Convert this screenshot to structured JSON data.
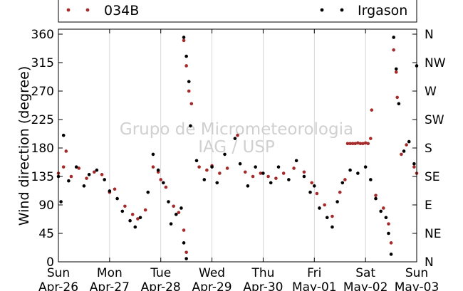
{
  "chart_data": {
    "type": "scatter",
    "ylabel": "Wind direction (degree)",
    "ylim": [
      0,
      360
    ],
    "yticks": [
      0,
      45,
      90,
      135,
      180,
      225,
      270,
      315,
      360
    ],
    "compass_ticks": [
      {
        "value": 0,
        "label": "N"
      },
      {
        "value": 45,
        "label": "NE"
      },
      {
        "value": 90,
        "label": "E"
      },
      {
        "value": 135,
        "label": "SE"
      },
      {
        "value": 180,
        "label": "S"
      },
      {
        "value": 225,
        "label": "SW"
      },
      {
        "value": 270,
        "label": "W"
      },
      {
        "value": 315,
        "label": "NW"
      },
      {
        "value": 360,
        "label": "N"
      }
    ],
    "xticks": [
      {
        "day": "Sun",
        "date": "Apr-26"
      },
      {
        "day": "Mon",
        "date": "Apr-27"
      },
      {
        "day": "Tue",
        "date": "Apr-28"
      },
      {
        "day": "Wed",
        "date": "Apr-29"
      },
      {
        "day": "Thu",
        "date": "Apr-30"
      },
      {
        "day": "Fri",
        "date": "May-01"
      },
      {
        "day": "Sat",
        "date": "May-02"
      },
      {
        "day": "Sun",
        "date": "May-03"
      }
    ],
    "grid": "vertical",
    "legend_position": "top",
    "watermark": [
      "Grupo de Micrometeorologia",
      "IAG / USP"
    ],
    "series": [
      {
        "name": "034B",
        "color": "#a52a2a",
        "points": [
          [
            0.0,
            140
          ],
          [
            0.1,
            150
          ],
          [
            0.15,
            175
          ],
          [
            0.25,
            135
          ],
          [
            0.4,
            148
          ],
          [
            0.55,
            132
          ],
          [
            0.7,
            142
          ],
          [
            0.85,
            138
          ],
          [
            1.0,
            110
          ],
          [
            1.1,
            115
          ],
          [
            1.3,
            88
          ],
          [
            1.45,
            75
          ],
          [
            1.55,
            68
          ],
          [
            1.7,
            82
          ],
          [
            1.85,
            150
          ],
          [
            1.95,
            142
          ],
          [
            2.0,
            130
          ],
          [
            2.1,
            118
          ],
          [
            2.25,
            88
          ],
          [
            2.35,
            78
          ],
          [
            2.45,
            50
          ],
          [
            2.5,
            15
          ],
          [
            2.45,
            350
          ],
          [
            2.5,
            310
          ],
          [
            2.55,
            270
          ],
          [
            2.6,
            250
          ],
          [
            2.75,
            150
          ],
          [
            2.9,
            145
          ],
          [
            3.0,
            152
          ],
          [
            3.15,
            140
          ],
          [
            3.3,
            148
          ],
          [
            3.5,
            200
          ],
          [
            3.65,
            142
          ],
          [
            3.8,
            135
          ],
          [
            3.95,
            140
          ],
          [
            4.1,
            135
          ],
          [
            4.25,
            132
          ],
          [
            4.4,
            140
          ],
          [
            4.6,
            148
          ],
          [
            4.8,
            142
          ],
          [
            4.95,
            125
          ],
          [
            5.05,
            108
          ],
          [
            5.2,
            90
          ],
          [
            5.35,
            72
          ],
          [
            5.5,
            110
          ],
          [
            5.6,
            130
          ],
          [
            5.65,
            187
          ],
          [
            5.7,
            187
          ],
          [
            5.75,
            187
          ],
          [
            5.8,
            187
          ],
          [
            5.85,
            188
          ],
          [
            5.9,
            187
          ],
          [
            5.95,
            187
          ],
          [
            6.0,
            188
          ],
          [
            6.05,
            187
          ],
          [
            6.1,
            195
          ],
          [
            6.12,
            240
          ],
          [
            6.2,
            105
          ],
          [
            6.35,
            85
          ],
          [
            6.45,
            60
          ],
          [
            6.5,
            30
          ],
          [
            6.55,
            335
          ],
          [
            6.6,
            300
          ],
          [
            6.62,
            260
          ],
          [
            6.7,
            170
          ],
          [
            6.8,
            185
          ],
          [
            6.95,
            150
          ],
          [
            7.0,
            140
          ]
        ]
      },
      {
        "name": "Irgason",
        "color": "#000000",
        "points": [
          [
            0.0,
            135
          ],
          [
            0.05,
            95
          ],
          [
            0.1,
            200
          ],
          [
            0.2,
            128
          ],
          [
            0.35,
            150
          ],
          [
            0.5,
            120
          ],
          [
            0.6,
            138
          ],
          [
            0.75,
            145
          ],
          [
            0.9,
            130
          ],
          [
            1.0,
            112
          ],
          [
            1.15,
            100
          ],
          [
            1.25,
            80
          ],
          [
            1.4,
            65
          ],
          [
            1.5,
            55
          ],
          [
            1.6,
            70
          ],
          [
            1.75,
            110
          ],
          [
            1.85,
            170
          ],
          [
            1.95,
            145
          ],
          [
            2.05,
            125
          ],
          [
            2.15,
            95
          ],
          [
            2.2,
            60
          ],
          [
            2.3,
            75
          ],
          [
            2.4,
            85
          ],
          [
            2.45,
            30
          ],
          [
            2.5,
            5
          ],
          [
            2.45,
            355
          ],
          [
            2.5,
            325
          ],
          [
            2.55,
            285
          ],
          [
            2.58,
            215
          ],
          [
            2.7,
            160
          ],
          [
            2.85,
            130
          ],
          [
            3.0,
            150
          ],
          [
            3.1,
            125
          ],
          [
            3.25,
            170
          ],
          [
            3.45,
            195
          ],
          [
            3.55,
            155
          ],
          [
            3.7,
            120
          ],
          [
            3.85,
            150
          ],
          [
            4.0,
            140
          ],
          [
            4.15,
            125
          ],
          [
            4.3,
            150
          ],
          [
            4.5,
            130
          ],
          [
            4.65,
            160
          ],
          [
            4.8,
            135
          ],
          [
            4.92,
            110
          ],
          [
            5.0,
            120
          ],
          [
            5.1,
            85
          ],
          [
            5.25,
            70
          ],
          [
            5.35,
            55
          ],
          [
            5.45,
            95
          ],
          [
            5.55,
            125
          ],
          [
            5.7,
            145
          ],
          [
            5.85,
            140
          ],
          [
            6.0,
            150
          ],
          [
            6.1,
            130
          ],
          [
            6.2,
            100
          ],
          [
            6.3,
            80
          ],
          [
            6.4,
            70
          ],
          [
            6.45,
            45
          ],
          [
            6.5,
            12
          ],
          [
            6.55,
            355
          ],
          [
            6.6,
            305
          ],
          [
            6.65,
            250
          ],
          [
            6.75,
            175
          ],
          [
            6.85,
            190
          ],
          [
            6.95,
            155
          ],
          [
            7.0,
            310
          ]
        ]
      }
    ]
  }
}
